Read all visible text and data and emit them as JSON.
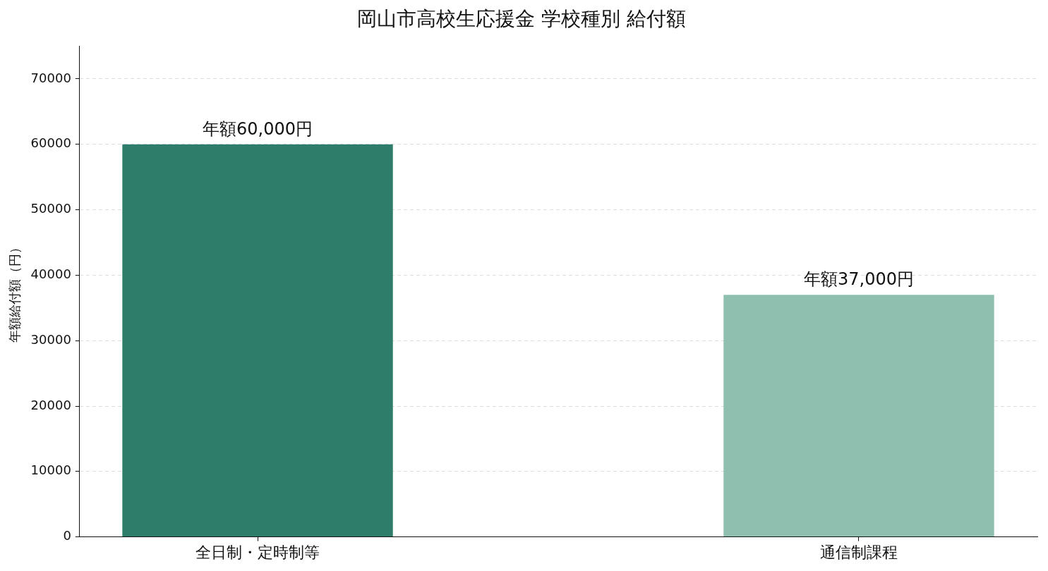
{
  "chart_data": {
    "type": "bar",
    "title": "岡山市高校生応援金 学校種別 給付額",
    "ylabel": "年額給付額（円）",
    "categories": [
      "全日制・定時制等",
      "通信制課程"
    ],
    "values": [
      60000,
      37000
    ],
    "colors": [
      "#2e7d6b",
      "#8fbfae"
    ],
    "value_labels": [
      "年額60,000円",
      "年額37,000円"
    ],
    "ylim": [
      0,
      75000
    ],
    "yticks": [
      0,
      10000,
      20000,
      30000,
      40000,
      50000,
      60000,
      70000
    ],
    "grid": "y"
  }
}
